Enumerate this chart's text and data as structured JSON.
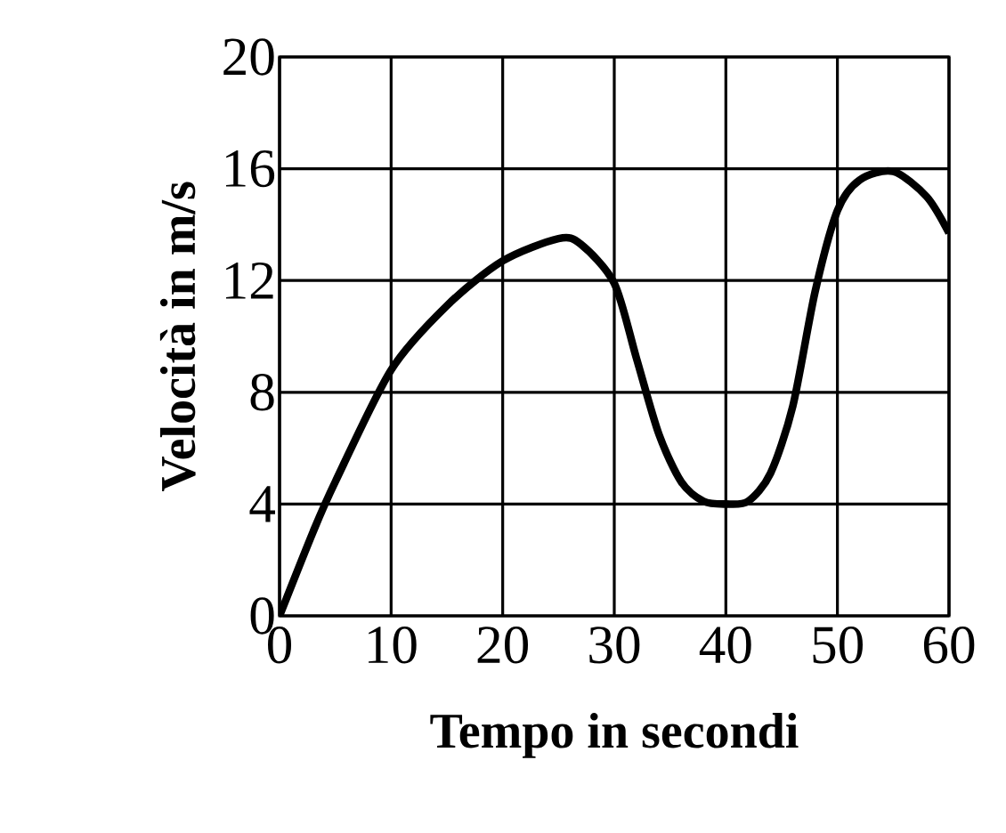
{
  "chart_data": {
    "type": "line",
    "xlabel": "Tempo in secondi",
    "ylabel": "Velocità in m/s",
    "x": [
      0,
      3,
      5,
      10,
      15,
      20,
      25,
      27,
      30,
      32,
      34,
      36,
      38,
      40,
      42,
      44,
      46,
      48,
      50,
      52,
      55,
      58,
      60
    ],
    "series": [
      {
        "color": "#000000",
        "values": [
          0,
          3.0,
          4.8,
          8.8,
          11.1,
          12.7,
          13.5,
          13.3,
          11.9,
          9.2,
          6.5,
          4.8,
          4.1,
          4.0,
          4.1,
          5.1,
          7.5,
          11.6,
          14.5,
          15.6,
          15.9,
          15.0,
          13.7
        ]
      }
    ],
    "xlim": [
      0,
      60
    ],
    "ylim": [
      0,
      20
    ],
    "xticks": [
      0,
      10,
      20,
      30,
      40,
      50,
      60
    ],
    "yticks": [
      0,
      4,
      8,
      12,
      16,
      20
    ],
    "grid": true,
    "marker": "none",
    "line_style": "solid"
  }
}
